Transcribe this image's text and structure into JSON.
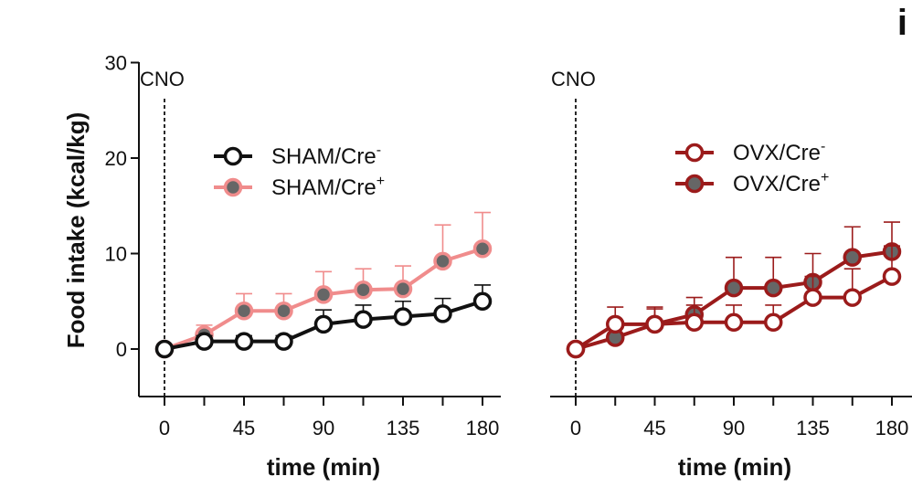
{
  "panel_label": "i",
  "chart_data": [
    {
      "type": "line",
      "ylabel": "Food intake (kcal/kg)",
      "xlabel": "time (min)",
      "ylim": [
        -5,
        30
      ],
      "yticks": [
        0,
        10,
        20,
        30
      ],
      "xlim": [
        -15,
        187.5
      ],
      "xticks": [
        0,
        45,
        90,
        135,
        180
      ],
      "x": [
        0,
        22.5,
        45,
        67.5,
        90,
        112.5,
        135,
        157.5,
        180
      ],
      "annotation": {
        "text": "CNO",
        "x": 0
      },
      "legend_position": "upper-center",
      "series": [
        {
          "name": "SHAM/Cre",
          "superscript": "-",
          "color": "#111111",
          "fill": "#ffffff",
          "values": [
            0,
            0.8,
            0.8,
            0.8,
            2.6,
            3.1,
            3.4,
            3.7,
            5.0
          ],
          "errors": [
            0,
            0.6,
            0.6,
            0.6,
            1.5,
            1.5,
            1.6,
            1.6,
            1.7
          ]
        },
        {
          "name": "SHAM/Cre",
          "superscript": "+",
          "color": "#f08c8c",
          "fill": "#666666",
          "values": [
            0,
            1.5,
            4.0,
            4.0,
            5.7,
            6.2,
            6.3,
            9.2,
            10.5
          ],
          "errors": [
            0,
            1.0,
            1.8,
            1.8,
            2.4,
            2.2,
            2.4,
            3.8,
            3.8
          ]
        }
      ]
    },
    {
      "type": "line",
      "ylabel": "",
      "xlabel": "time (min)",
      "ylim": [
        -5,
        30
      ],
      "yticks": [],
      "xlim": [
        -15,
        187.5
      ],
      "xticks": [
        0,
        45,
        90,
        135,
        180
      ],
      "x": [
        0,
        22.5,
        45,
        67.5,
        90,
        112.5,
        135,
        157.5,
        180
      ],
      "annotation": {
        "text": "CNO",
        "x": 0
      },
      "legend_position": "upper-right",
      "series": [
        {
          "name": "OVX/Cre",
          "superscript": "-",
          "color": "#9b1b1b",
          "fill": "#ffffff",
          "values": [
            0,
            2.6,
            2.6,
            2.8,
            2.8,
            2.8,
            5.4,
            5.4,
            7.6
          ],
          "errors": [
            0,
            1.8,
            1.8,
            1.8,
            1.8,
            1.8,
            2.2,
            3.0,
            3.2
          ]
        },
        {
          "name": "OVX/Cre",
          "superscript": "+",
          "color": "#9b1b1b",
          "fill": "#666666",
          "values": [
            0,
            1.2,
            2.6,
            3.6,
            6.4,
            6.4,
            7.0,
            9.6,
            10.2
          ],
          "errors": [
            0,
            1.0,
            1.6,
            1.8,
            3.2,
            3.2,
            3.0,
            3.2,
            3.1
          ]
        }
      ]
    }
  ]
}
